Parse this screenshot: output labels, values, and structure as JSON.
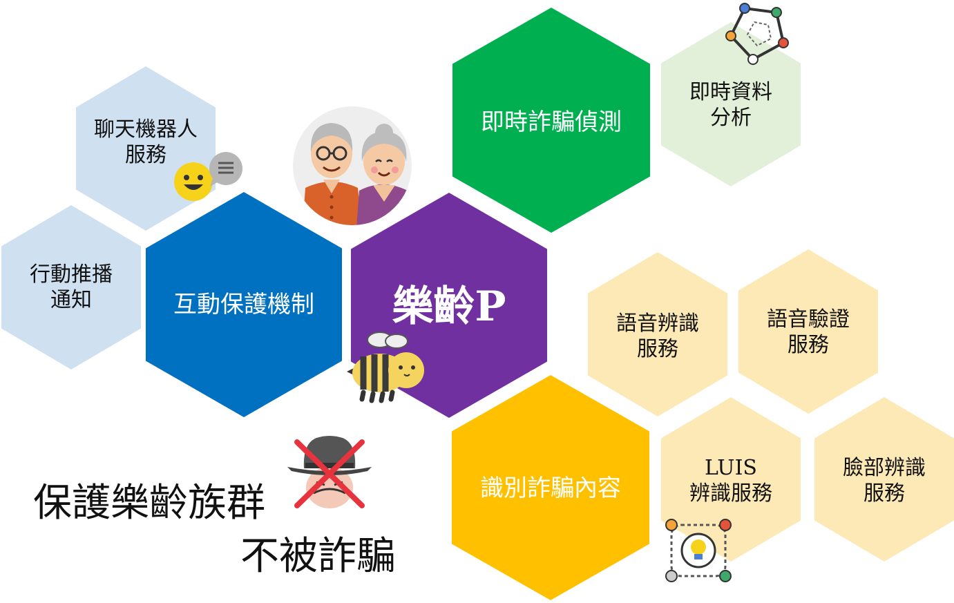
{
  "colors": {
    "center": "#7030a0",
    "blue": "#0070c0",
    "green": "#00b050",
    "yellow": "#ffc000",
    "light_blue": "#cfe0f1",
    "light_green": "#e2f0d9",
    "light_yellow": "#fde9b6"
  },
  "hexes": {
    "center": {
      "line1": "樂齡P",
      "line2": ""
    },
    "interactive": {
      "line1": "互動保護機制",
      "line2": ""
    },
    "detect": {
      "line1": "即時詐騙偵測",
      "line2": ""
    },
    "identify": {
      "line1": "識別詐騙內容",
      "line2": ""
    },
    "chatbot": {
      "line1": "聊天機器人",
      "line2": "服務"
    },
    "push": {
      "line1": "行動推播",
      "line2": "通知"
    },
    "realtime": {
      "line1": "即時資料",
      "line2": "分析"
    },
    "speech_rec": {
      "line1": "語音辨識",
      "line2": "服務"
    },
    "voice_verify": {
      "line1": "語音驗證",
      "line2": "服務"
    },
    "luis": {
      "line1": "LUIS",
      "line2": "辨識服務"
    },
    "face": {
      "line1": "臉部辨識",
      "line2": "服務"
    }
  },
  "slogan": {
    "line1": "保護樂齡族群",
    "line2": "不被詐騙"
  },
  "icons": [
    "elderly-couple-icon",
    "chatbot-face-icon",
    "chat-bubble-icon",
    "bee-icon",
    "scammer-crossed-icon",
    "data-cycle-icon",
    "lightbulb-cycle-icon"
  ]
}
